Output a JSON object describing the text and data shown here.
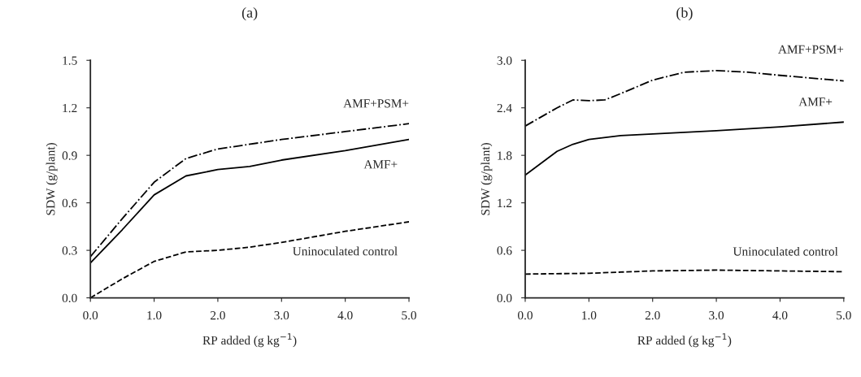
{
  "chart_data": [
    {
      "type": "line",
      "title": "(a)",
      "xlabel": "RP added (g kg$^{−1}$)",
      "ylabel": "SDW (g/plant)",
      "xlim": [
        0,
        5
      ],
      "xticks": [
        {
          "value": 0,
          "label": "0.0"
        },
        {
          "value": 1,
          "label": "1.0"
        },
        {
          "value": 2,
          "label": "2.0"
        },
        {
          "value": 3,
          "label": "3.0"
        },
        {
          "value": 4,
          "label": "4.0"
        },
        {
          "value": 5,
          "label": "5.0"
        }
      ],
      "ylim": [
        0,
        1.5
      ],
      "yticks": [
        {
          "value": 0,
          "label": "0.0"
        },
        {
          "value": 0.3,
          "label": "0.3"
        },
        {
          "value": 0.6,
          "label": "0.6"
        },
        {
          "value": 0.9,
          "label": "0.9"
        },
        {
          "value": 1.2,
          "label": "1.2"
        },
        {
          "value": 1.5,
          "label": "1.5"
        }
      ],
      "grid": false,
      "legend": false,
      "series": [
        {
          "name": "AMF+PSM+",
          "color": "#000000",
          "line_style": "dashdot",
          "x": [
            0,
            0.5,
            1.0,
            1.5,
            2,
            3,
            4,
            5
          ],
          "values": [
            0.26,
            0.5,
            0.73,
            0.88,
            0.94,
            1.0,
            1.05,
            1.1
          ]
        },
        {
          "name": "AMF+",
          "color": "#000000",
          "line_style": "solid",
          "x": [
            0,
            0.5,
            1,
            1.5,
            2,
            2.5,
            3,
            4,
            5
          ],
          "values": [
            0.22,
            0.43,
            0.65,
            0.77,
            0.81,
            0.83,
            0.87,
            0.93,
            1.0
          ]
        },
        {
          "name": "Uninoculated control",
          "color": "#000000",
          "line_style": "dashed",
          "x": [
            0,
            0.5,
            1,
            1.5,
            2,
            2.5,
            3,
            4,
            5
          ],
          "values": [
            0,
            0.12,
            0.23,
            0.29,
            0.3,
            0.32,
            0.35,
            0.42,
            0.48
          ]
        }
      ]
    },
    {
      "type": "line",
      "title": "(b)",
      "xlabel": "RP added (g kg$^{−1}$)",
      "ylabel": "SDW (g/plant)",
      "xlim": [
        0,
        5
      ],
      "xticks": [
        {
          "value": 0,
          "label": "0.0"
        },
        {
          "value": 1,
          "label": "1.0"
        },
        {
          "value": 2,
          "label": "2.0"
        },
        {
          "value": 3,
          "label": "3.0"
        },
        {
          "value": 4,
          "label": "4.0"
        },
        {
          "value": 5,
          "label": "5.0"
        }
      ],
      "ylim": [
        0,
        3
      ],
      "yticks": [
        {
          "value": 0,
          "label": "0.0"
        },
        {
          "value": 0.6,
          "label": "0.6"
        },
        {
          "value": 1.2,
          "label": "1.2"
        },
        {
          "value": 1.8,
          "label": "1.8"
        },
        {
          "value": 2.4,
          "label": "2.4"
        },
        {
          "value": 3,
          "label": "3.0"
        }
      ],
      "grid": false,
      "legend": false,
      "series": [
        {
          "name": "AMF+PSM+",
          "color": "#000000",
          "line_style": "dashdot",
          "x": [
            0,
            0.5,
            0.75,
            1.0,
            1.25,
            1.5,
            2,
            2.5,
            3,
            3.5,
            4,
            5
          ],
          "values": [
            2.17,
            2.4,
            2.5,
            2.49,
            2.5,
            2.58,
            2.75,
            2.85,
            2.87,
            2.85,
            2.81,
            2.74
          ]
        },
        {
          "name": "AMF+",
          "color": "#000000",
          "line_style": "solid",
          "x": [
            0,
            0.5,
            0.75,
            1,
            1.5,
            2,
            3,
            4,
            5
          ],
          "values": [
            1.55,
            1.85,
            1.94,
            2.0,
            2.05,
            2.07,
            2.11,
            2.16,
            2.22
          ]
        },
        {
          "name": "Uninoculated control",
          "color": "#000000",
          "line_style": "dashed",
          "x": [
            0,
            1,
            2,
            3,
            4,
            5
          ],
          "values": [
            0.3,
            0.31,
            0.34,
            0.35,
            0.34,
            0.33
          ]
        }
      ]
    }
  ]
}
